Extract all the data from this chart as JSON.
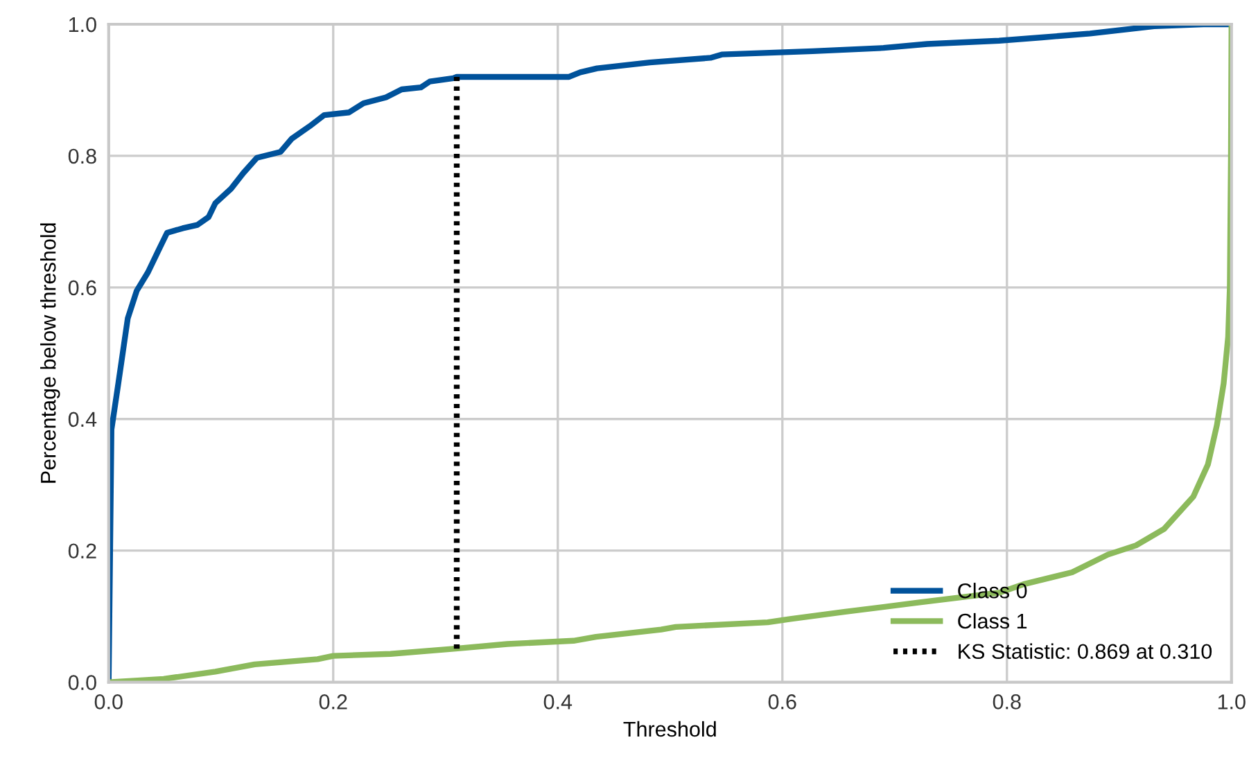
{
  "chart_data": {
    "type": "line",
    "xlabel": "Threshold",
    "ylabel": "Percentage below threshold",
    "xlim": [
      0,
      1
    ],
    "ylim": [
      0,
      1
    ],
    "xticks": [
      {
        "value": 0,
        "label": "0.0"
      },
      {
        "value": 0.2,
        "label": "0.2"
      },
      {
        "value": 0.4,
        "label": "0.4"
      },
      {
        "value": 0.6,
        "label": "0.6"
      },
      {
        "value": 0.8,
        "label": "0.8"
      },
      {
        "value": 1,
        "label": "1.0"
      }
    ],
    "yticks": [
      {
        "value": 0,
        "label": "0.0"
      },
      {
        "value": 0.2,
        "label": "0.2"
      },
      {
        "value": 0.4,
        "label": "0.4"
      },
      {
        "value": 0.6,
        "label": "0.6"
      },
      {
        "value": 0.8,
        "label": "0.8"
      },
      {
        "value": 1,
        "label": "1.0"
      }
    ],
    "grid": true,
    "legend": "bottom right",
    "marker": "none",
    "series": [
      {
        "name": "Class 0",
        "color": "#00529b",
        "line_style": "solid",
        "x": [
          0,
          0.0025,
          0.0086,
          0.017,
          0.025,
          0.035,
          0.044,
          0.052,
          0.066,
          0.079,
          0.089,
          0.095,
          0.109,
          0.12,
          0.132,
          0.153,
          0.163,
          0.179,
          0.192,
          0.214,
          0.227,
          0.247,
          0.261,
          0.278,
          0.286,
          0.307,
          0.31,
          0.41,
          0.42,
          0.435,
          0.482,
          0.536,
          0.546,
          0.627,
          0.69,
          0.729,
          0.793,
          0.831,
          0.874,
          0.931,
          0.975,
          1
        ],
        "values": [
          0,
          0.384,
          0.454,
          0.553,
          0.595,
          0.623,
          0.655,
          0.683,
          0.69,
          0.695,
          0.707,
          0.728,
          0.75,
          0.774,
          0.797,
          0.806,
          0.826,
          0.845,
          0.862,
          0.866,
          0.88,
          0.889,
          0.901,
          0.904,
          0.913,
          0.918,
          0.92,
          0.92,
          0.927,
          0.933,
          0.942,
          0.949,
          0.954,
          0.959,
          0.964,
          0.97,
          0.975,
          0.98,
          0.986,
          0.997,
          1,
          1
        ]
      },
      {
        "name": "Class 1",
        "color": "#8cba5c",
        "line_style": "solid",
        "x": [
          0,
          0.049,
          0.095,
          0.13,
          0.186,
          0.2,
          0.251,
          0.309,
          0.355,
          0.414,
          0.434,
          0.492,
          0.505,
          0.587,
          0.607,
          0.656,
          0.721,
          0.793,
          0.815,
          0.858,
          0.89,
          0.915,
          0.94,
          0.966,
          0.979,
          0.987,
          0.993,
          0.997,
          0.9985,
          0.9995,
          1
        ],
        "values": [
          0,
          0.005,
          0.016,
          0.027,
          0.035,
          0.04,
          0.043,
          0.051,
          0.058,
          0.063,
          0.069,
          0.08,
          0.084,
          0.091,
          0.096,
          0.107,
          0.121,
          0.136,
          0.149,
          0.167,
          0.194,
          0.208,
          0.233,
          0.282,
          0.331,
          0.391,
          0.454,
          0.525,
          0.6,
          0.8,
          1
        ]
      },
      {
        "name": "KS Statistic: 0.869 at 0.310",
        "color": "#000000",
        "line_style": "dotted",
        "x": [
          0.31,
          0.31
        ],
        "values": [
          0.051,
          0.92
        ]
      }
    ]
  }
}
